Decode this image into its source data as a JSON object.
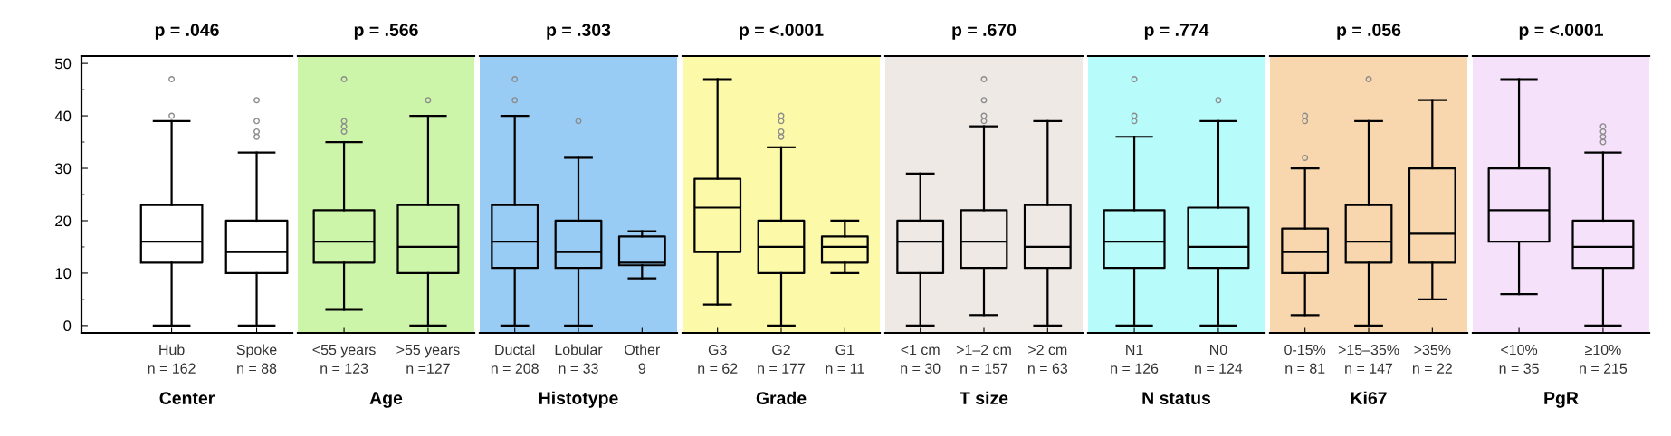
{
  "chart_data": [
    {
      "type": "box",
      "title": "p = .046",
      "xlabel": "Center",
      "categories": [
        "Hub\nn = 162",
        "Spoke\nn = 88"
      ],
      "boxes": [
        {
          "low": 0,
          "q1": 12,
          "median": 16,
          "q3": 23,
          "high": 39,
          "outliers": [
            40,
            47
          ]
        },
        {
          "low": 0,
          "q1": 10,
          "median": 14,
          "q3": 20,
          "high": 33,
          "outliers": [
            36,
            37,
            39,
            43
          ]
        }
      ],
      "ylim": [
        -1.4,
        51.4
      ],
      "yticks": [
        0,
        {
          "value": 5,
          "label": null
        },
        10,
        {
          "value": 15,
          "label": null
        },
        20,
        {
          "value": 25,
          "label": null
        },
        30,
        {
          "value": 35,
          "label": null
        },
        40,
        {
          "value": 45,
          "label": null
        },
        50
      ]
    },
    {
      "type": "box",
      "title": "p = .566",
      "xlabel": "Age",
      "categories": [
        "<55 years\nn = 123",
        ">55 years\nn =127"
      ],
      "boxes": [
        {
          "low": 3,
          "q1": 12,
          "median": 16,
          "q3": 22,
          "high": 35,
          "outliers": [
            37,
            38,
            39,
            47
          ]
        },
        {
          "low": 0,
          "q1": 10,
          "median": 15,
          "q3": 23,
          "high": 40,
          "outliers": [
            43
          ]
        }
      ],
      "ylim": [
        -1.4,
        51.4
      ],
      "tick_labels": "x",
      "bands": [
        {
          "axis": "y",
          "from": -1.4,
          "to": 51.4,
          "color": "#ccf5aa"
        }
      ]
    },
    {
      "type": "box",
      "title": "p = .303",
      "xlabel": "Histotype",
      "categories": [
        "Ductal\nn = 208",
        "Lobular\nn = 33",
        "Other\n9"
      ],
      "boxes": [
        {
          "low": 0,
          "q1": 11,
          "median": 16,
          "q3": 23,
          "high": 40,
          "outliers": [
            43,
            47
          ]
        },
        {
          "low": 0,
          "q1": 11,
          "median": 14,
          "q3": 20,
          "high": 32,
          "outliers": [
            39
          ]
        },
        {
          "low": 9,
          "q1": 11.5,
          "median": 12,
          "q3": 17,
          "high": 18
        }
      ],
      "ylim": [
        -1.4,
        51.4
      ],
      "tick_labels": "x",
      "bands": [
        {
          "axis": "y",
          "from": -1.4,
          "to": 51.4,
          "color": "#99ccf5"
        }
      ]
    },
    {
      "type": "box",
      "title": "p = <.0001",
      "xlabel": "Grade",
      "categories": [
        "G3\nn = 62",
        "G2\nn = 177",
        "G1\nn = 11"
      ],
      "boxes": [
        {
          "low": 4,
          "q1": 14,
          "median": 22.5,
          "q3": 28,
          "high": 47
        },
        {
          "low": 0,
          "q1": 10,
          "median": 15,
          "q3": 20,
          "high": 34,
          "outliers": [
            36,
            37,
            39,
            40
          ]
        },
        {
          "low": 10,
          "q1": 12,
          "median": 15,
          "q3": 17,
          "high": 20
        }
      ],
      "ylim": [
        -1.4,
        51.4
      ],
      "tick_labels": "x",
      "bands": [
        {
          "axis": "y",
          "from": -1.4,
          "to": 51.4,
          "color": "#fcf9a8"
        }
      ]
    },
    {
      "type": "box",
      "title": "p = .670",
      "xlabel": "T size",
      "categories": [
        "<1 cm\nn = 30",
        ">1–2 cm\nn = 157",
        ">2 cm\nn = 63"
      ],
      "boxes": [
        {
          "low": 0,
          "q1": 10,
          "median": 16,
          "q3": 20,
          "high": 29
        },
        {
          "low": 2,
          "q1": 11,
          "median": 16,
          "q3": 22,
          "high": 38,
          "outliers": [
            39,
            40,
            43,
            47
          ]
        },
        {
          "low": 0,
          "q1": 11,
          "median": 15,
          "q3": 23,
          "high": 39
        }
      ],
      "ylim": [
        -1.4,
        51.4
      ],
      "tick_labels": "x",
      "bands": [
        {
          "axis": "y",
          "from": -1.4,
          "to": 51.4,
          "color": "#efe9e6"
        }
      ]
    },
    {
      "type": "box",
      "title": "p = .774",
      "xlabel": "N status",
      "categories": [
        "N1\nn = 126",
        "N0\nn = 124"
      ],
      "boxes": [
        {
          "low": 0,
          "q1": 11,
          "median": 16,
          "q3": 22,
          "high": 36,
          "outliers": [
            39,
            40,
            47
          ]
        },
        {
          "low": 0,
          "q1": 11,
          "median": 15,
          "q3": 22.5,
          "high": 39,
          "outliers": [
            43
          ]
        }
      ],
      "ylim": [
        -1.4,
        51.4
      ],
      "tick_labels": "x",
      "bands": [
        {
          "axis": "y",
          "from": -1.4,
          "to": 51.4,
          "color": "#b8fbfb"
        }
      ]
    },
    {
      "type": "box",
      "title": "p = .056",
      "xlabel": "Ki67",
      "categories": [
        "0-15%\nn = 81",
        ">15–35%\nn = 147",
        ">35%\nn = 22"
      ],
      "boxes": [
        {
          "low": 2,
          "q1": 10,
          "median": 14,
          "q3": 18.5,
          "high": 30,
          "outliers": [
            32,
            39,
            40
          ]
        },
        {
          "low": 0,
          "q1": 12,
          "median": 16,
          "q3": 23,
          "high": 39,
          "outliers": [
            47
          ]
        },
        {
          "low": 5,
          "q1": 12,
          "median": 17.5,
          "q3": 30,
          "high": 43
        }
      ],
      "ylim": [
        -1.4,
        51.4
      ],
      "tick_labels": "x",
      "bands": [
        {
          "axis": "y",
          "from": -1.4,
          "to": 51.4,
          "color": "#f9d7ae"
        }
      ]
    },
    {
      "type": "box",
      "title": "p = <.0001",
      "xlabel": "PgR",
      "categories": [
        "<10%\nn = 35",
        "≥10%\nn = 215"
      ],
      "boxes": [
        {
          "low": 6,
          "q1": 16,
          "median": 22,
          "q3": 30,
          "high": 47
        },
        {
          "low": 0,
          "q1": 11,
          "median": 15,
          "q3": 20,
          "high": 33,
          "outliers": [
            35,
            36,
            37,
            38
          ]
        }
      ],
      "ylim": [
        -1.4,
        51.4
      ],
      "tick_labels": "x",
      "bands": [
        {
          "axis": "y",
          "from": -1.4,
          "to": 51.4,
          "color": "#f6e1fb"
        }
      ]
    }
  ]
}
